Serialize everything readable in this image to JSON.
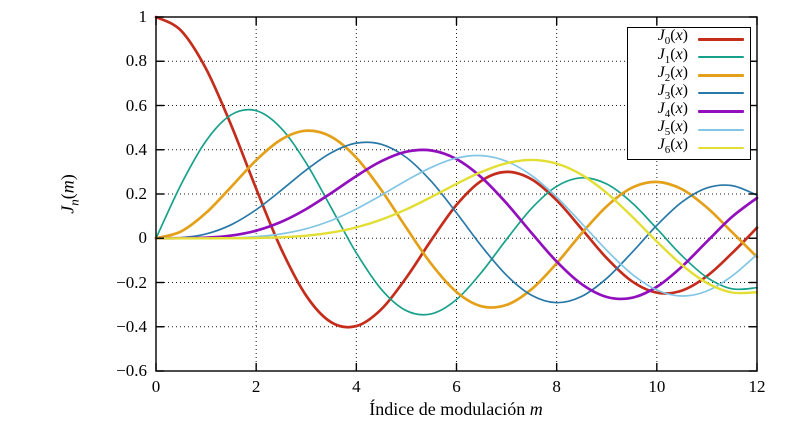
{
  "figure": {
    "xlabel": {
      "text": "Índice de modulación ",
      "math": "m"
    },
    "ylabel": {
      "base": "J",
      "sub": "n",
      "open": "(",
      "var": "m",
      "close": ")"
    }
  },
  "chart_data": {
    "type": "line",
    "title": "",
    "xlabel": "Índice de modulación m",
    "ylabel": "J_n(m)",
    "xlim": [
      0,
      12
    ],
    "ylim": [
      -0.6,
      1
    ],
    "grid": true,
    "grid_style": "dotted",
    "legend_position": "top-right",
    "axis_color": "#000000",
    "background": "#ffffff",
    "xticks": [
      0,
      2,
      4,
      6,
      8,
      10,
      12
    ],
    "xtick_labels": [
      "0",
      "2",
      "4",
      "6",
      "8",
      "10",
      "12"
    ],
    "yticks": [
      1,
      0.8,
      0.6,
      0.4,
      0.2,
      0,
      -0.2,
      -0.4,
      -0.6
    ],
    "ytick_labels": [
      "1",
      "0.8",
      "0.6",
      "0.4",
      "0.2",
      "0",
      "−0.2",
      "−0.4",
      "−0.6"
    ],
    "x": [
      0,
      0.5,
      1,
      1.5,
      2,
      2.5,
      3,
      3.5,
      4,
      4.5,
      5,
      5.5,
      6,
      6.5,
      7,
      7.5,
      8,
      8.5,
      9,
      9.5,
      10,
      10.5,
      11,
      11.5,
      12
    ],
    "series": [
      {
        "name": "J_0(x)",
        "label": {
          "base": "J",
          "sub": "0",
          "var": "x"
        },
        "color": "#c42d1c",
        "width": 2.7,
        "values": [
          1.0,
          0.9385,
          0.7652,
          0.5118,
          0.2239,
          -0.0484,
          -0.2601,
          -0.3801,
          -0.3971,
          -0.3205,
          -0.1776,
          -0.0068,
          0.1506,
          0.2601,
          0.3001,
          0.2663,
          0.1717,
          0.0419,
          -0.0903,
          -0.1939,
          -0.2459,
          -0.2366,
          -0.1712,
          -0.0677,
          0.0477
        ]
      },
      {
        "name": "J_1(x)",
        "label": {
          "base": "J",
          "sub": "1",
          "var": "x"
        },
        "color": "#17a18a",
        "width": 1.7,
        "values": [
          0,
          0.2423,
          0.4401,
          0.5579,
          0.5767,
          0.4971,
          0.3391,
          0.1374,
          -0.066,
          -0.2311,
          -0.3276,
          -0.3414,
          -0.2767,
          -0.1538,
          -0.0047,
          0.1352,
          0.2346,
          0.2731,
          0.2453,
          0.1613,
          0.0435,
          -0.0789,
          -0.1768,
          -0.2284,
          -0.2234
        ]
      },
      {
        "name": "J_2(x)",
        "label": {
          "base": "J",
          "sub": "2",
          "var": "x"
        },
        "color": "#e3a018",
        "width": 2.7,
        "values": [
          0,
          0.0306,
          0.1149,
          0.2321,
          0.3528,
          0.4461,
          0.4861,
          0.4586,
          0.3641,
          0.2178,
          0.0466,
          -0.1173,
          -0.2429,
          -0.3074,
          -0.3014,
          -0.2302,
          -0.1131,
          0.0223,
          0.1448,
          0.2279,
          0.2546,
          0.2216,
          0.139,
          0.0279,
          -0.0849
        ]
      },
      {
        "name": "J_3(x)",
        "label": {
          "base": "J",
          "sub": "3",
          "var": "x"
        },
        "color": "#2979a8",
        "width": 1.7,
        "values": [
          0,
          0.0026,
          0.0196,
          0.061,
          0.1289,
          0.2166,
          0.3091,
          0.3868,
          0.4302,
          0.4247,
          0.3648,
          0.2561,
          0.1148,
          -0.0353,
          -0.1676,
          -0.258,
          -0.2911,
          -0.2626,
          -0.1809,
          -0.0653,
          0.0583,
          0.1633,
          0.2274,
          0.2381,
          0.1951
        ]
      },
      {
        "name": "J_4(x)",
        "label": {
          "base": "J",
          "sub": "4",
          "var": "x"
        },
        "color": "#920fbe",
        "width": 2.7,
        "values": [
          0,
          0.0002,
          0.0025,
          0.0118,
          0.034,
          0.0738,
          0.132,
          0.2044,
          0.2811,
          0.3484,
          0.3912,
          0.3967,
          0.3576,
          0.2748,
          0.1578,
          0.0238,
          -0.1054,
          -0.2077,
          -0.2655,
          -0.2691,
          -0.2196,
          -0.1283,
          -0.015,
          0.0963,
          0.1825
        ]
      },
      {
        "name": "J_5(x)",
        "label": {
          "base": "J",
          "sub": "5",
          "var": "x"
        },
        "color": "#82c6e4",
        "width": 1.7,
        "values": [
          0,
          0,
          0.0002,
          0.0018,
          0.007,
          0.0195,
          0.043,
          0.0804,
          0.1321,
          0.1947,
          0.2611,
          0.3209,
          0.3621,
          0.3736,
          0.3479,
          0.2834,
          0.1858,
          0.0671,
          -0.055,
          -0.1613,
          -0.234,
          -0.2611,
          -0.2383,
          -0.1711,
          -0.0734
        ]
      },
      {
        "name": "J_6(x)",
        "label": {
          "base": "J",
          "sub": "6",
          "var": "x"
        },
        "color": "#e2de33",
        "width": 2.4,
        "values": [
          0,
          0,
          0,
          0.0002,
          0.0012,
          0.0044,
          0.0114,
          0.0254,
          0.0491,
          0.0843,
          0.131,
          0.1868,
          0.2458,
          0.2999,
          0.3392,
          0.3541,
          0.3376,
          0.2867,
          0.2043,
          0.0993,
          -0.0145,
          -0.1203,
          -0.2016,
          -0.2451,
          -0.2437
        ]
      }
    ]
  }
}
